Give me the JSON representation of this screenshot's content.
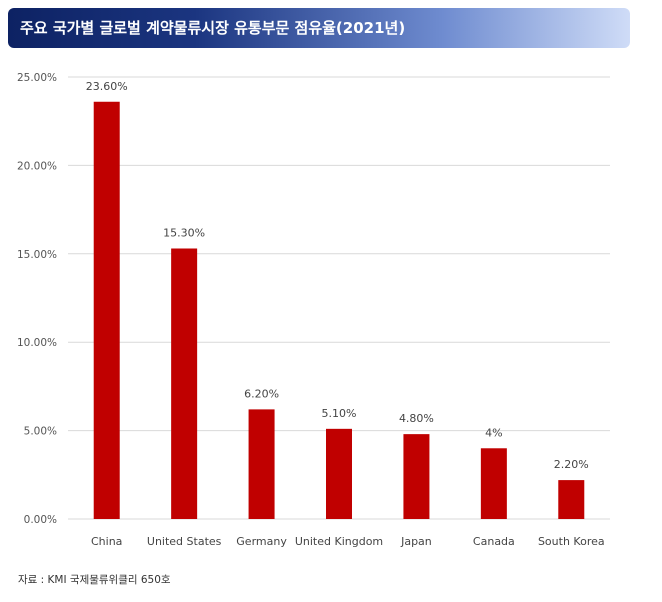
{
  "header": {
    "title": "주요 국가별 글로벌 계약물류시장 유통부문 점유율(2021년)"
  },
  "chart_data": {
    "type": "bar",
    "categories": [
      "China",
      "United States",
      "Germany",
      "United Kingdom",
      "Japan",
      "Canada",
      "South Korea"
    ],
    "values": [
      23.6,
      15.3,
      6.2,
      5.1,
      4.8,
      4.0,
      2.2
    ],
    "data_labels": [
      "23.60%",
      "15.30%",
      "6.20%",
      "5.10%",
      "4.80%",
      "4%",
      "2.20%"
    ],
    "y_ticks": [
      "0.00%",
      "5.00%",
      "10.00%",
      "15.00%",
      "20.00%",
      "25.00%"
    ],
    "ylim": [
      0,
      25
    ],
    "grid": true,
    "bar_color": "#c00000",
    "grid_color": "#d9d9d9"
  },
  "footer": {
    "source": "자료 : KMI 국제물류위클리 650호"
  }
}
